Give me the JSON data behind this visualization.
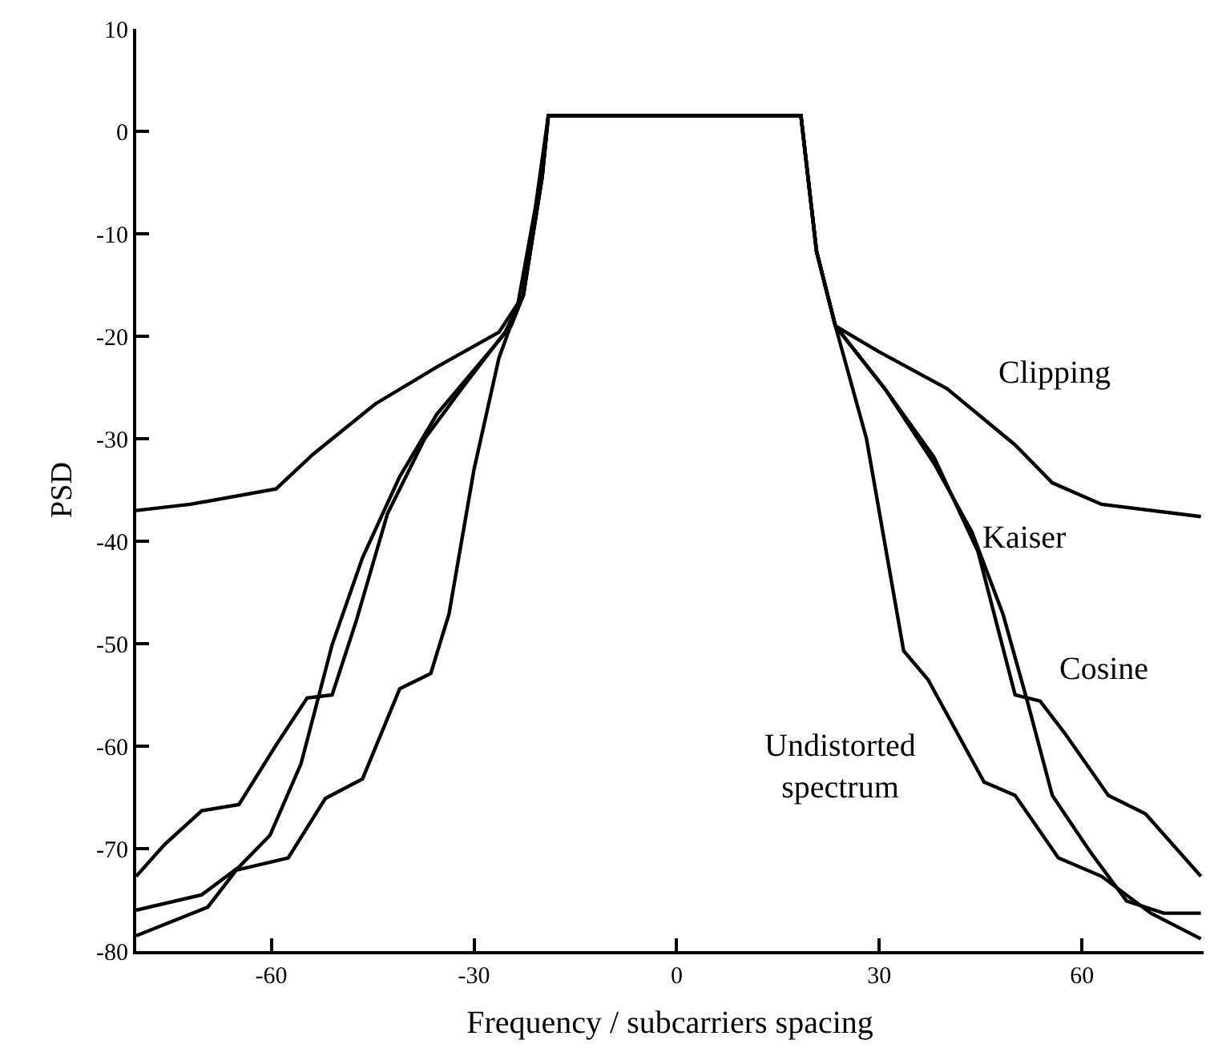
{
  "chart_data": {
    "type": "line",
    "xlabel": "Frequency / subcarriers spacing",
    "ylabel": "PSD",
    "xlim": [
      -80,
      78
    ],
    "xticks": [
      -60,
      -30,
      0,
      30,
      60
    ],
    "ylim": [
      -80,
      10
    ],
    "yticks": [
      -80,
      -70,
      -60,
      -50,
      -40,
      -30,
      -20,
      -10,
      0,
      10
    ],
    "legend": false,
    "marker": "none",
    "line_style": "solid",
    "series": [
      {
        "name": "Clipping",
        "color": "#000000",
        "x": [
          -80,
          -72,
          -59.3,
          -53.8,
          -44.6,
          -35.5,
          -26.3,
          -22.7,
          -19.9,
          -19,
          18.4,
          20.7,
          23.5,
          29.9,
          40,
          50.1,
          55.6,
          62.9,
          77.6
        ],
        "values": [
          -37,
          -36.4,
          -34.9,
          -31.5,
          -26.6,
          -23,
          -19.6,
          -16,
          -4.4,
          1.5,
          1.5,
          -11.7,
          -19,
          -21.5,
          -25.1,
          -30.6,
          -34.3,
          -36.4,
          -37.6
        ]
      },
      {
        "name": "Kaiser",
        "color": "#000000",
        "x": [
          -80,
          -70.3,
          -64.8,
          -60.2,
          -55.6,
          -51,
          -46.5,
          -41,
          -35.5,
          -30,
          -24.5,
          -22.7,
          -19.9,
          -19,
          18.4,
          20.7,
          23.5,
          30.8,
          38.1,
          43.7,
          48.3,
          51.9,
          55.6,
          61.1,
          66.6,
          72.1,
          77.6
        ],
        "values": [
          -76,
          -74.5,
          -71.8,
          -68.7,
          -61.7,
          -50.1,
          -41.6,
          -33.7,
          -27.6,
          -23.3,
          -19,
          -16,
          -4.4,
          1.5,
          1.5,
          -11.7,
          -19,
          -25.1,
          -32.4,
          -39.1,
          -47.1,
          -55.6,
          -64.8,
          -70.2,
          -75.1,
          -76.3,
          -76.3
        ]
      },
      {
        "name": "Cosine",
        "color": "#000000",
        "x": [
          -80,
          -75.8,
          -70.3,
          -64.8,
          -59.3,
          -54.7,
          -51,
          -47.4,
          -42.8,
          -37.3,
          -31.8,
          -25.4,
          -22.7,
          -19.9,
          -19,
          18.4,
          20.7,
          23.5,
          30.8,
          38.1,
          44.6,
          50.1,
          53.8,
          57.4,
          63.9,
          69.4,
          77.6
        ],
        "values": [
          -72.7,
          -69.6,
          -66.3,
          -65.7,
          -59.9,
          -55.3,
          -55,
          -47.7,
          -37.3,
          -30,
          -25.1,
          -19.6,
          -16,
          -4.4,
          1.5,
          1.5,
          -11.7,
          -19,
          -25.1,
          -31.8,
          -41,
          -55,
          -55.6,
          -58.7,
          -64.8,
          -66.6,
          -72.7
        ]
      },
      {
        "name": "Undistorted\nspectrum",
        "color": "#000000",
        "x": [
          -80,
          -69.4,
          -65.2,
          -57.5,
          -52,
          -46.5,
          -41,
          -36.4,
          -33.7,
          -30,
          -26.3,
          -23.6,
          -20.9,
          -19,
          18.4,
          20.7,
          23.5,
          28.1,
          33.6,
          37.2,
          45.5,
          50.1,
          56.5,
          62.9,
          70.2,
          77.6
        ],
        "values": [
          -78.5,
          -75.7,
          -72.1,
          -70.9,
          -65.1,
          -63.2,
          -54.4,
          -52.9,
          -47.1,
          -33,
          -22.1,
          -17.2,
          -7.4,
          1.5,
          1.5,
          -11.7,
          -19,
          -30,
          -50.7,
          -53.5,
          -63.5,
          -64.8,
          -70.9,
          -72.7,
          -76.3,
          -78.8
        ]
      }
    ]
  }
}
